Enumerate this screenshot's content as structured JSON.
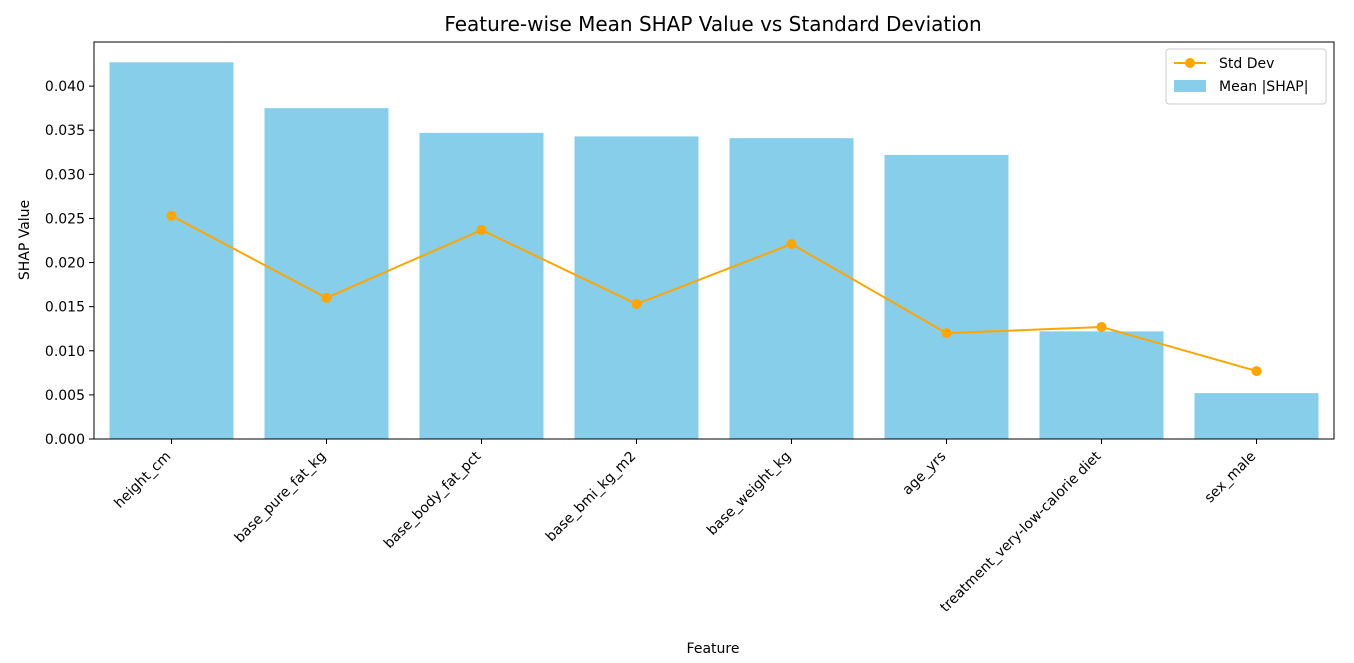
{
  "chart_data": {
    "type": "bar",
    "title": "Feature-wise Mean SHAP Value vs Standard Deviation",
    "xlabel": "Feature",
    "ylabel": "SHAP Value",
    "ylim": [
      0,
      0.045
    ],
    "yticks": [
      "0.000",
      "0.005",
      "0.010",
      "0.015",
      "0.020",
      "0.025",
      "0.030",
      "0.035",
      "0.040"
    ],
    "categories": [
      "height_cm",
      "base_pure_fat_kg",
      "base_body_fat_pct",
      "base_bmi_kg_m2",
      "base_weight_kg",
      "age_yrs",
      "treatment_very-low-calorie diet",
      "sex_male"
    ],
    "series": [
      {
        "name": "Mean |SHAP|",
        "kind": "bar",
        "color": "#87CEEB",
        "values": [
          0.0427,
          0.0375,
          0.0347,
          0.0343,
          0.0341,
          0.0322,
          0.0122,
          0.0052
        ]
      },
      {
        "name": "Std Dev",
        "kind": "line",
        "color": "#FFA500",
        "values": [
          0.0253,
          0.016,
          0.0237,
          0.0153,
          0.0221,
          0.012,
          0.0127,
          0.0077
        ]
      }
    ],
    "legend": {
      "position": "top-right",
      "entries": [
        "Std Dev",
        "Mean |SHAP|"
      ]
    },
    "grid": false
  }
}
